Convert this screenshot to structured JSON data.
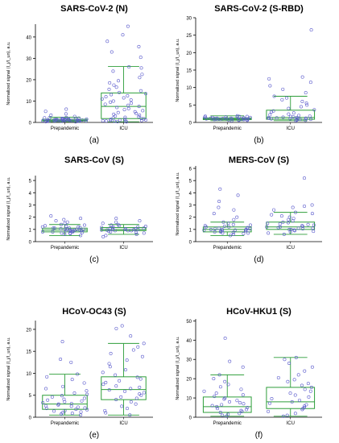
{
  "colors": {
    "box": "#2e9e3a",
    "point": "#5a5acc",
    "axis": "#000000",
    "text": "#000000"
  },
  "chart_data": [
    {
      "type": "box",
      "title": "SARS-CoV-2 (N)",
      "label": "(a)",
      "ylabel": "Normalized signal (I_j/I_un), a.u.",
      "categories": [
        "Prepandemic",
        "ICU"
      ],
      "ylim": [
        0,
        46
      ],
      "yticks": [
        0,
        10,
        20,
        30,
        40
      ],
      "boxes": [
        {
          "category": "Prepandemic",
          "whisker_low": 0.3,
          "q1": 0.7,
          "median": 1.0,
          "q3": 1.5,
          "whisker_high": 2.4
        },
        {
          "category": "ICU",
          "whisker_low": 0.3,
          "q1": 1.8,
          "median": 7.5,
          "q3": 13.8,
          "whisker_high": 26.2
        }
      ],
      "points": [
        {
          "category": "Prepandemic",
          "values": [
            0.3,
            0.4,
            0.5,
            0.5,
            0.6,
            0.6,
            0.7,
            0.7,
            0.7,
            0.8,
            0.8,
            0.8,
            0.9,
            0.9,
            0.9,
            1.0,
            1.0,
            1.0,
            1.0,
            1.1,
            1.1,
            1.1,
            1.2,
            1.2,
            1.2,
            1.3,
            1.3,
            1.4,
            1.4,
            1.5,
            1.5,
            1.6,
            1.7,
            1.8,
            1.9,
            2.0,
            2.1,
            2.2,
            2.3,
            2.8,
            3.4,
            4.0,
            5.2,
            6.2
          ]
        },
        {
          "category": "ICU",
          "values": [
            0.3,
            0.4,
            0.5,
            0.6,
            0.7,
            0.8,
            0.9,
            1.0,
            1.1,
            1.2,
            1.4,
            1.5,
            1.7,
            1.9,
            2.1,
            2.4,
            2.7,
            3.0,
            3.4,
            3.8,
            4.2,
            4.6,
            5.0,
            5.5,
            6.0,
            6.5,
            7.0,
            7.5,
            8.0,
            8.5,
            9.0,
            9.5,
            10.0,
            10.5,
            11.0,
            11.5,
            12.0,
            12.5,
            13.0,
            13.5,
            14.0,
            14.8,
            15.5,
            16.5,
            17.5,
            18.5,
            19.5,
            21.0,
            22.5,
            24.0,
            25.5,
            26.0,
            30.5,
            33.0,
            35.5,
            38.0,
            41.0,
            45.0
          ]
        }
      ]
    },
    {
      "type": "box",
      "title": "SARS-CoV-2 (S-RBD)",
      "label": "(b)",
      "ylabel": "Normalized signal (I_j/I_un), a.u.",
      "categories": [
        "Prepandemic",
        "ICU"
      ],
      "ylim": [
        0,
        30
      ],
      "yticks": [
        0,
        5,
        10,
        15,
        20,
        25,
        30
      ],
      "boxes": [
        {
          "category": "Prepandemic",
          "whisker_low": 0.5,
          "q1": 0.8,
          "median": 1.0,
          "q3": 1.3,
          "whisker_high": 1.9
        },
        {
          "category": "ICU",
          "whisker_low": 0.5,
          "q1": 0.9,
          "median": 1.4,
          "q3": 3.5,
          "whisker_high": 7.5
        }
      ],
      "points": [
        {
          "category": "Prepandemic",
          "values": [
            0.5,
            0.6,
            0.6,
            0.7,
            0.7,
            0.8,
            0.8,
            0.8,
            0.9,
            0.9,
            0.9,
            1.0,
            1.0,
            1.0,
            1.0,
            1.1,
            1.1,
            1.1,
            1.2,
            1.2,
            1.2,
            1.3,
            1.3,
            1.4,
            1.4,
            1.5,
            1.5,
            1.6,
            1.6,
            1.7,
            1.7,
            1.8,
            1.9
          ]
        },
        {
          "category": "ICU",
          "values": [
            0.5,
            0.6,
            0.7,
            0.8,
            0.9,
            0.9,
            1.0,
            1.0,
            1.1,
            1.1,
            1.2,
            1.2,
            1.3,
            1.3,
            1.4,
            1.5,
            1.6,
            1.7,
            1.8,
            2.0,
            2.2,
            2.4,
            2.7,
            3.0,
            3.3,
            3.6,
            4.0,
            4.5,
            5.0,
            5.5,
            6.0,
            6.5,
            7.0,
            7.5,
            8.5,
            9.5,
            10.5,
            11.5,
            12.5,
            13.0,
            26.5
          ]
        }
      ]
    },
    {
      "type": "box",
      "title": "SARS-CoV (S)",
      "label": "(c)",
      "ylabel": "Normalized signal (I_j/I_un), a.u.",
      "categories": [
        "Prepandemic",
        "ICU"
      ],
      "ylim": [
        0,
        5.4
      ],
      "yticks": [
        0,
        1,
        2,
        3,
        4,
        5
      ],
      "boxes": [
        {
          "category": "Prepandemic",
          "whisker_low": 0.5,
          "q1": 0.8,
          "median": 0.95,
          "q3": 1.1,
          "whisker_high": 1.4
        },
        {
          "category": "ICU",
          "whisker_low": 0.6,
          "q1": 0.9,
          "median": 1.0,
          "q3": 1.15,
          "whisker_high": 1.4
        }
      ],
      "points": [
        {
          "category": "Prepandemic",
          "values": [
            0.5,
            0.6,
            0.65,
            0.7,
            0.7,
            0.75,
            0.8,
            0.8,
            0.8,
            0.85,
            0.85,
            0.9,
            0.9,
            0.9,
            0.95,
            0.95,
            0.95,
            1.0,
            1.0,
            1.0,
            1.05,
            1.05,
            1.1,
            1.1,
            1.1,
            1.15,
            1.2,
            1.2,
            1.25,
            1.3,
            1.35,
            1.4,
            1.5,
            1.6,
            1.7,
            1.8,
            1.9,
            2.1
          ]
        },
        {
          "category": "ICU",
          "values": [
            0.4,
            0.5,
            0.6,
            0.7,
            0.75,
            0.8,
            0.85,
            0.9,
            0.9,
            0.9,
            0.95,
            0.95,
            1.0,
            1.0,
            1.0,
            1.0,
            1.05,
            1.05,
            1.1,
            1.1,
            1.1,
            1.15,
            1.2,
            1.2,
            1.25,
            1.3,
            1.35,
            1.4,
            1.5,
            1.6,
            1.7,
            1.9
          ]
        }
      ]
    },
    {
      "type": "box",
      "title": "MERS-CoV (S)",
      "label": "(d)",
      "ylabel": "Normalized signal (I_j/I_un), a.u.",
      "categories": [
        "Prepandemic",
        "ICU"
      ],
      "ylim": [
        0,
        6.2
      ],
      "yticks": [
        0,
        1,
        2,
        3,
        4,
        5,
        6
      ],
      "boxes": [
        {
          "category": "Prepandemic",
          "whisker_low": 0.5,
          "q1": 0.8,
          "median": 1.0,
          "q3": 1.2,
          "whisker_high": 1.6
        },
        {
          "category": "ICU",
          "whisker_low": 0.6,
          "q1": 1.0,
          "median": 1.2,
          "q3": 1.6,
          "whisker_high": 2.4
        }
      ],
      "points": [
        {
          "category": "Prepandemic",
          "values": [
            0.5,
            0.6,
            0.65,
            0.7,
            0.7,
            0.75,
            0.8,
            0.8,
            0.85,
            0.9,
            0.9,
            0.9,
            0.95,
            0.95,
            1.0,
            1.0,
            1.0,
            1.05,
            1.05,
            1.1,
            1.1,
            1.15,
            1.2,
            1.2,
            1.25,
            1.3,
            1.35,
            1.4,
            1.5,
            1.6,
            1.8,
            2.0,
            2.3,
            2.6,
            2.8,
            3.3,
            3.8,
            4.3
          ]
        },
        {
          "category": "ICU",
          "values": [
            0.6,
            0.7,
            0.8,
            0.85,
            0.9,
            0.95,
            1.0,
            1.0,
            1.05,
            1.1,
            1.1,
            1.15,
            1.2,
            1.2,
            1.25,
            1.3,
            1.35,
            1.4,
            1.45,
            1.5,
            1.55,
            1.6,
            1.7,
            1.8,
            1.9,
            2.0,
            2.1,
            2.2,
            2.3,
            2.4,
            2.6,
            2.8,
            2.9,
            3.0,
            5.2
          ]
        }
      ]
    },
    {
      "type": "box",
      "title": "HCoV-OC43 (S)",
      "label": "(e)",
      "ylabel": "Normalized signal (I_j/I_un), a.u.",
      "categories": [
        "Prepandemic",
        "ICU"
      ],
      "ylim": [
        0,
        22
      ],
      "yticks": [
        0,
        5,
        10,
        15,
        20
      ],
      "boxes": [
        {
          "category": "Prepandemic",
          "whisker_low": 0.5,
          "q1": 1.8,
          "median": 3.0,
          "q3": 5.0,
          "whisker_high": 9.8
        },
        {
          "category": "ICU",
          "whisker_low": 0.5,
          "q1": 4.0,
          "median": 6.3,
          "q3": 9.2,
          "whisker_high": 16.8
        }
      ],
      "points": [
        {
          "category": "Prepandemic",
          "values": [
            0.5,
            0.7,
            0.9,
            1.0,
            1.2,
            1.4,
            1.5,
            1.7,
            1.8,
            2.0,
            2.1,
            2.3,
            2.5,
            2.6,
            2.8,
            3.0,
            3.1,
            3.3,
            3.5,
            3.7,
            3.9,
            4.1,
            4.3,
            4.6,
            4.9,
            5.2,
            5.5,
            6.0,
            6.5,
            7.0,
            7.8,
            8.6,
            9.2,
            9.8,
            12.5,
            13.2,
            17.2
          ]
        },
        {
          "category": "ICU",
          "values": [
            0.5,
            1.0,
            1.5,
            2.0,
            2.5,
            3.0,
            3.5,
            4.0,
            4.3,
            4.6,
            5.0,
            5.3,
            5.6,
            5.9,
            6.2,
            6.5,
            6.8,
            7.1,
            7.5,
            7.9,
            8.3,
            8.7,
            9.1,
            9.6,
            10.2,
            10.8,
            11.5,
            12.2,
            13.0,
            13.8,
            14.5,
            15.3,
            16.0,
            16.8,
            18.5,
            20.2,
            20.8
          ]
        }
      ]
    },
    {
      "type": "box",
      "title": "HCoV-HKU1 (S)",
      "label": "(f)",
      "ylabel": "Normalized signal (I_j/I_un), a.u.",
      "categories": [
        "Prepandemic",
        "ICU"
      ],
      "ylim": [
        0,
        51
      ],
      "yticks": [
        0,
        10,
        20,
        30,
        40,
        50
      ],
      "boxes": [
        {
          "category": "Prepandemic",
          "whisker_low": 0.5,
          "q1": 2.5,
          "median": 5.5,
          "q3": 10.5,
          "whisker_high": 22.0
        },
        {
          "category": "ICU",
          "whisker_low": 0.5,
          "q1": 4.5,
          "median": 8.0,
          "q3": 15.5,
          "whisker_high": 31.0
        }
      ],
      "points": [
        {
          "category": "Prepandemic",
          "values": [
            0.5,
            1.0,
            1.5,
            2.0,
            2.5,
            3.0,
            3.5,
            4.0,
            4.5,
            5.0,
            5.5,
            6.0,
            6.5,
            7.0,
            7.5,
            8.0,
            8.7,
            9.4,
            10.0,
            10.8,
            11.6,
            12.5,
            13.5,
            14.5,
            15.8,
            17.0,
            18.5,
            20.0,
            22.0,
            26.0,
            29.0,
            41.0
          ]
        },
        {
          "category": "ICU",
          "values": [
            0.5,
            1.0,
            2.0,
            3.0,
            4.0,
            4.5,
            5.0,
            5.8,
            6.5,
            7.2,
            8.0,
            8.8,
            9.6,
            10.5,
            11.5,
            12.5,
            13.5,
            14.5,
            15.5,
            16.5,
            17.5,
            18.5,
            19.5,
            20.5,
            22.0,
            24.0,
            26.0,
            28.0,
            30.0,
            31.0
          ]
        }
      ]
    }
  ]
}
